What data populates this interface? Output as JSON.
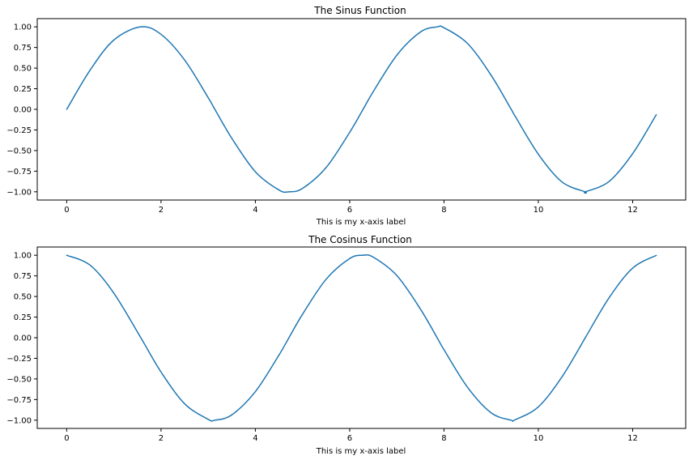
{
  "chart_data": [
    {
      "type": "line",
      "title": "The Sinus Function",
      "xlabel": "This is my x-axis label",
      "ylabel": "",
      "xlim": [
        -0.625,
        13.125
      ],
      "ylim": [
        -1.1,
        1.1
      ],
      "xticks": [
        0,
        2,
        4,
        6,
        8,
        10,
        12
      ],
      "yticks": [
        1.0,
        0.75,
        0.5,
        0.25,
        0.0,
        -0.25,
        -0.5,
        -0.75,
        -1.0
      ],
      "xtick_labels": [
        "0",
        "2",
        "4",
        "6",
        "8",
        "10",
        "12"
      ],
      "ytick_labels": [
        "1.00",
        "0.75",
        "0.50",
        "0.25",
        "0.00",
        "−0.25",
        "−0.50",
        "−0.75",
        "−1.00"
      ],
      "grid": false,
      "series": [
        {
          "color": "#1f77b4",
          "x": [
            0,
            0.5,
            1.0,
            1.5708,
            2.0,
            2.5,
            3.0,
            3.1416,
            3.5,
            4.0,
            4.5,
            4.7124,
            5.0,
            5.5,
            6.0,
            6.2832,
            6.5,
            7.0,
            7.5,
            7.854,
            8.0,
            8.5,
            9.0,
            9.4248,
            9.5,
            10.0,
            10.5,
            10.9956,
            11.0,
            11.5,
            12.0,
            12.5
          ],
          "values": [
            0.0,
            0.479,
            0.841,
            1.0,
            0.909,
            0.598,
            0.141,
            0.0,
            -0.351,
            -0.757,
            -0.978,
            -1.0,
            -0.959,
            -0.706,
            -0.279,
            0.0,
            0.215,
            0.657,
            0.938,
            1.0,
            0.989,
            0.798,
            0.412,
            0.0,
            -0.075,
            -0.544,
            -0.88,
            -1.0,
            -1.0,
            -0.875,
            -0.537,
            -0.066
          ]
        }
      ]
    },
    {
      "type": "line",
      "title": "The Cosinus Function",
      "xlabel": "This is my x-axis label",
      "ylabel": "",
      "xlim": [
        -0.625,
        13.125
      ],
      "ylim": [
        -1.1,
        1.1
      ],
      "xticks": [
        0,
        2,
        4,
        6,
        8,
        10,
        12
      ],
      "yticks": [
        1.0,
        0.75,
        0.5,
        0.25,
        0.0,
        -0.25,
        -0.5,
        -0.75,
        -1.0
      ],
      "xtick_labels": [
        "0",
        "2",
        "4",
        "6",
        "8",
        "10",
        "12"
      ],
      "ytick_labels": [
        "1.00",
        "0.75",
        "0.50",
        "0.25",
        "0.00",
        "−0.25",
        "−0.50",
        "−0.75",
        "−1.00"
      ],
      "grid": false,
      "series": [
        {
          "color": "#1f77b4",
          "x": [
            0,
            0.5,
            1.0,
            1.5708,
            2.0,
            2.5,
            3.0,
            3.1416,
            3.5,
            4.0,
            4.5,
            4.7124,
            5.0,
            5.5,
            6.0,
            6.2832,
            6.5,
            7.0,
            7.5,
            7.854,
            8.0,
            8.5,
            9.0,
            9.4248,
            9.5,
            10.0,
            10.5,
            10.9956,
            11.0,
            11.5,
            12.0,
            12.5
          ],
          "values": [
            1.0,
            0.878,
            0.54,
            0.0,
            -0.416,
            -0.801,
            -0.99,
            -1.0,
            -0.936,
            -0.654,
            -0.211,
            0.0,
            0.284,
            0.709,
            0.96,
            1.0,
            0.977,
            0.754,
            0.347,
            0.0,
            -0.146,
            -0.602,
            -0.911,
            -1.0,
            -0.997,
            -0.839,
            -0.476,
            0.0,
            0.004,
            0.484,
            0.844,
            0.998
          ]
        }
      ]
    }
  ]
}
